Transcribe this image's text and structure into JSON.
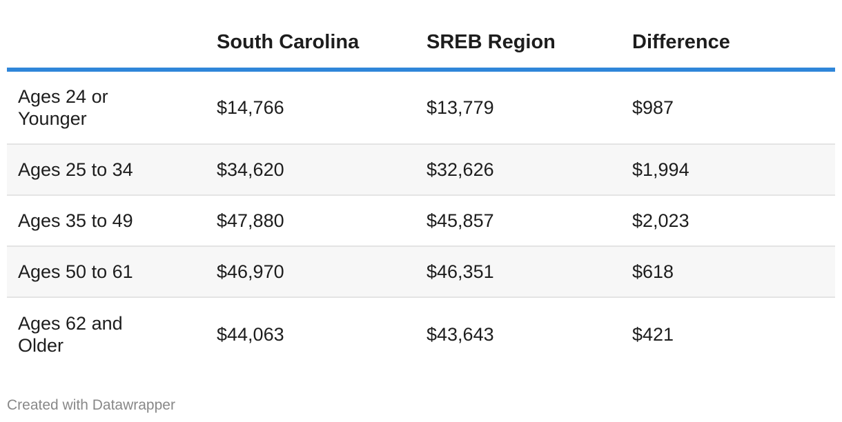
{
  "chart_data": {
    "type": "table",
    "columns": [
      "",
      "South Carolina",
      "SREB Region",
      "Difference"
    ],
    "rows": [
      {
        "label": "Ages 24 or Younger",
        "values": [
          "$14,766",
          "$13,779",
          "$987"
        ]
      },
      {
        "label": "Ages 25 to 34",
        "values": [
          "$34,620",
          "$32,626",
          "$1,994"
        ]
      },
      {
        "label": "Ages 35 to 49",
        "values": [
          "$47,880",
          "$45,857",
          "$2,023"
        ]
      },
      {
        "label": "Ages 50 to 61",
        "values": [
          "$46,970",
          "$46,351",
          "$618"
        ]
      },
      {
        "label": "Ages 62 and Older",
        "values": [
          "$44,063",
          "$43,643",
          "$421"
        ]
      }
    ],
    "header_rule_color": "#2f86d9",
    "alt_row_color": "#f7f7f7"
  },
  "footer": {
    "credit": "Created with Datawrapper"
  }
}
